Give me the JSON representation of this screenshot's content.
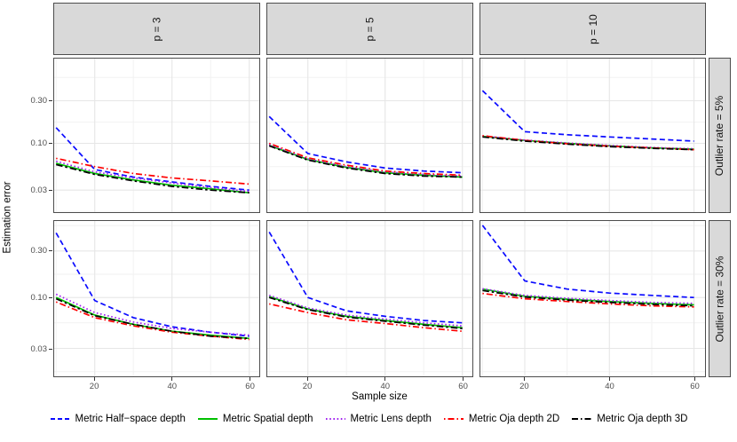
{
  "chart_data": {
    "type": "line",
    "title": "",
    "xlabel": "Sample size",
    "ylabel": "Estimation error",
    "grid": "on",
    "legend_position": "bottom",
    "x": [
      10,
      20,
      30,
      40,
      50,
      60
    ],
    "x_domain": [
      9.5,
      62.6
    ],
    "x_ticks": [
      20,
      40,
      60
    ],
    "x_tick_labels": [
      "20",
      "40",
      "60"
    ],
    "x_minor": [
      10,
      30,
      50
    ],
    "y_ticks": [
      0.3,
      0.1,
      0.03
    ],
    "y_tick_labels": [
      "0.30",
      "0.10",
      "0.03"
    ],
    "y_minor": [
      0.548,
      0.173,
      0.0548,
      0.0173
    ],
    "y_scale": "log10",
    "col_facets": [
      "p = 3",
      "p = 5",
      "p = 10"
    ],
    "row_facets": [
      "Outlier rate = 5%",
      "Outlier rate = 30%"
    ],
    "rows": [
      {
        "ylim": [
          0.017,
          0.89
        ]
      },
      {
        "ylim": [
          0.0155,
          0.61
        ]
      }
    ],
    "series_style": [
      {
        "name": "Metric Half−space depth",
        "color": "#0A0AFF",
        "dash": "6 3.5",
        "legend_dash": "5 3"
      },
      {
        "name": "Metric Spatial depth",
        "color": "#00C000",
        "dash": "",
        "legend_dash": ""
      },
      {
        "name": "Metric Lens depth",
        "color": "#A020F0",
        "dash": "1.6 2.6",
        "legend_dash": "1.6 2.6"
      },
      {
        "name": "Metric Oja depth 2D",
        "color": "#FF0000",
        "dash": "1.5 3 7 3",
        "legend_dash": "1.5 3 7 3"
      },
      {
        "name": "Metric Oja depth 3D",
        "color": "#000000",
        "dash": "7.5 3 2.5 3",
        "legend_dash": "7 3 1.5 3"
      }
    ],
    "panels": [
      {
        "row": 0,
        "col": 0,
        "facet_col": "p = 3",
        "facet_row": "Outlier rate = 5%",
        "series": [
          [
            0.15,
            0.051,
            0.042,
            0.037,
            0.033,
            0.03
          ],
          [
            0.06,
            0.046,
            0.039,
            0.034,
            0.031,
            0.028
          ],
          [
            0.063,
            0.048,
            0.041,
            0.036,
            0.032,
            0.029
          ],
          [
            0.068,
            0.055,
            0.046,
            0.041,
            0.038,
            0.035
          ],
          [
            0.058,
            0.045,
            0.038,
            0.033,
            0.03,
            0.028
          ]
        ]
      },
      {
        "row": 0,
        "col": 1,
        "facet_col": "p = 5",
        "facet_row": "Outlier rate = 5%",
        "series": [
          [
            0.2,
            0.077,
            0.062,
            0.053,
            0.049,
            0.047
          ],
          [
            0.095,
            0.066,
            0.054,
            0.047,
            0.044,
            0.042
          ],
          [
            0.097,
            0.067,
            0.055,
            0.048,
            0.045,
            0.043
          ],
          [
            0.1,
            0.069,
            0.057,
            0.049,
            0.046,
            0.044
          ],
          [
            0.094,
            0.065,
            0.053,
            0.046,
            0.043,
            0.042
          ]
        ]
      },
      {
        "row": 0,
        "col": 2,
        "facet_col": "p = 10",
        "facet_row": "Outlier rate = 5%",
        "series": [
          [
            0.39,
            0.135,
            0.125,
            0.118,
            0.112,
            0.106
          ],
          [
            0.12,
            0.108,
            0.1,
            0.094,
            0.089,
            0.086
          ],
          [
            0.121,
            0.109,
            0.101,
            0.095,
            0.09,
            0.087
          ],
          [
            0.122,
            0.108,
            0.099,
            0.093,
            0.089,
            0.085
          ],
          [
            0.118,
            0.106,
            0.098,
            0.092,
            0.088,
            0.085
          ]
        ]
      },
      {
        "row": 1,
        "col": 0,
        "facet_col": "p = 3",
        "facet_row": "Outlier rate = 30%",
        "series": [
          [
            0.46,
            0.093,
            0.062,
            0.05,
            0.044,
            0.04
          ],
          [
            0.1,
            0.066,
            0.053,
            0.045,
            0.041,
            0.038
          ],
          [
            0.108,
            0.07,
            0.056,
            0.048,
            0.044,
            0.041
          ],
          [
            0.09,
            0.062,
            0.051,
            0.044,
            0.04,
            0.037
          ],
          [
            0.097,
            0.065,
            0.053,
            0.045,
            0.04,
            0.038
          ]
        ]
      },
      {
        "row": 1,
        "col": 1,
        "facet_col": "p = 5",
        "facet_row": "Outlier rate = 30%",
        "series": [
          [
            0.47,
            0.1,
            0.073,
            0.064,
            0.058,
            0.055
          ],
          [
            0.102,
            0.076,
            0.064,
            0.058,
            0.053,
            0.049
          ],
          [
            0.105,
            0.078,
            0.066,
            0.06,
            0.055,
            0.051
          ],
          [
            0.086,
            0.07,
            0.059,
            0.054,
            0.049,
            0.045
          ],
          [
            0.1,
            0.075,
            0.063,
            0.057,
            0.052,
            0.048
          ]
        ]
      },
      {
        "row": 1,
        "col": 2,
        "facet_col": "p = 10",
        "facet_row": "Outlier rate = 30%",
        "series": [
          [
            0.55,
            0.148,
            0.122,
            0.111,
            0.105,
            0.1
          ],
          [
            0.122,
            0.103,
            0.096,
            0.091,
            0.087,
            0.084
          ],
          [
            0.123,
            0.105,
            0.098,
            0.093,
            0.089,
            0.087
          ],
          [
            0.11,
            0.097,
            0.091,
            0.086,
            0.082,
            0.08
          ],
          [
            0.118,
            0.101,
            0.094,
            0.089,
            0.085,
            0.082
          ]
        ]
      }
    ]
  }
}
